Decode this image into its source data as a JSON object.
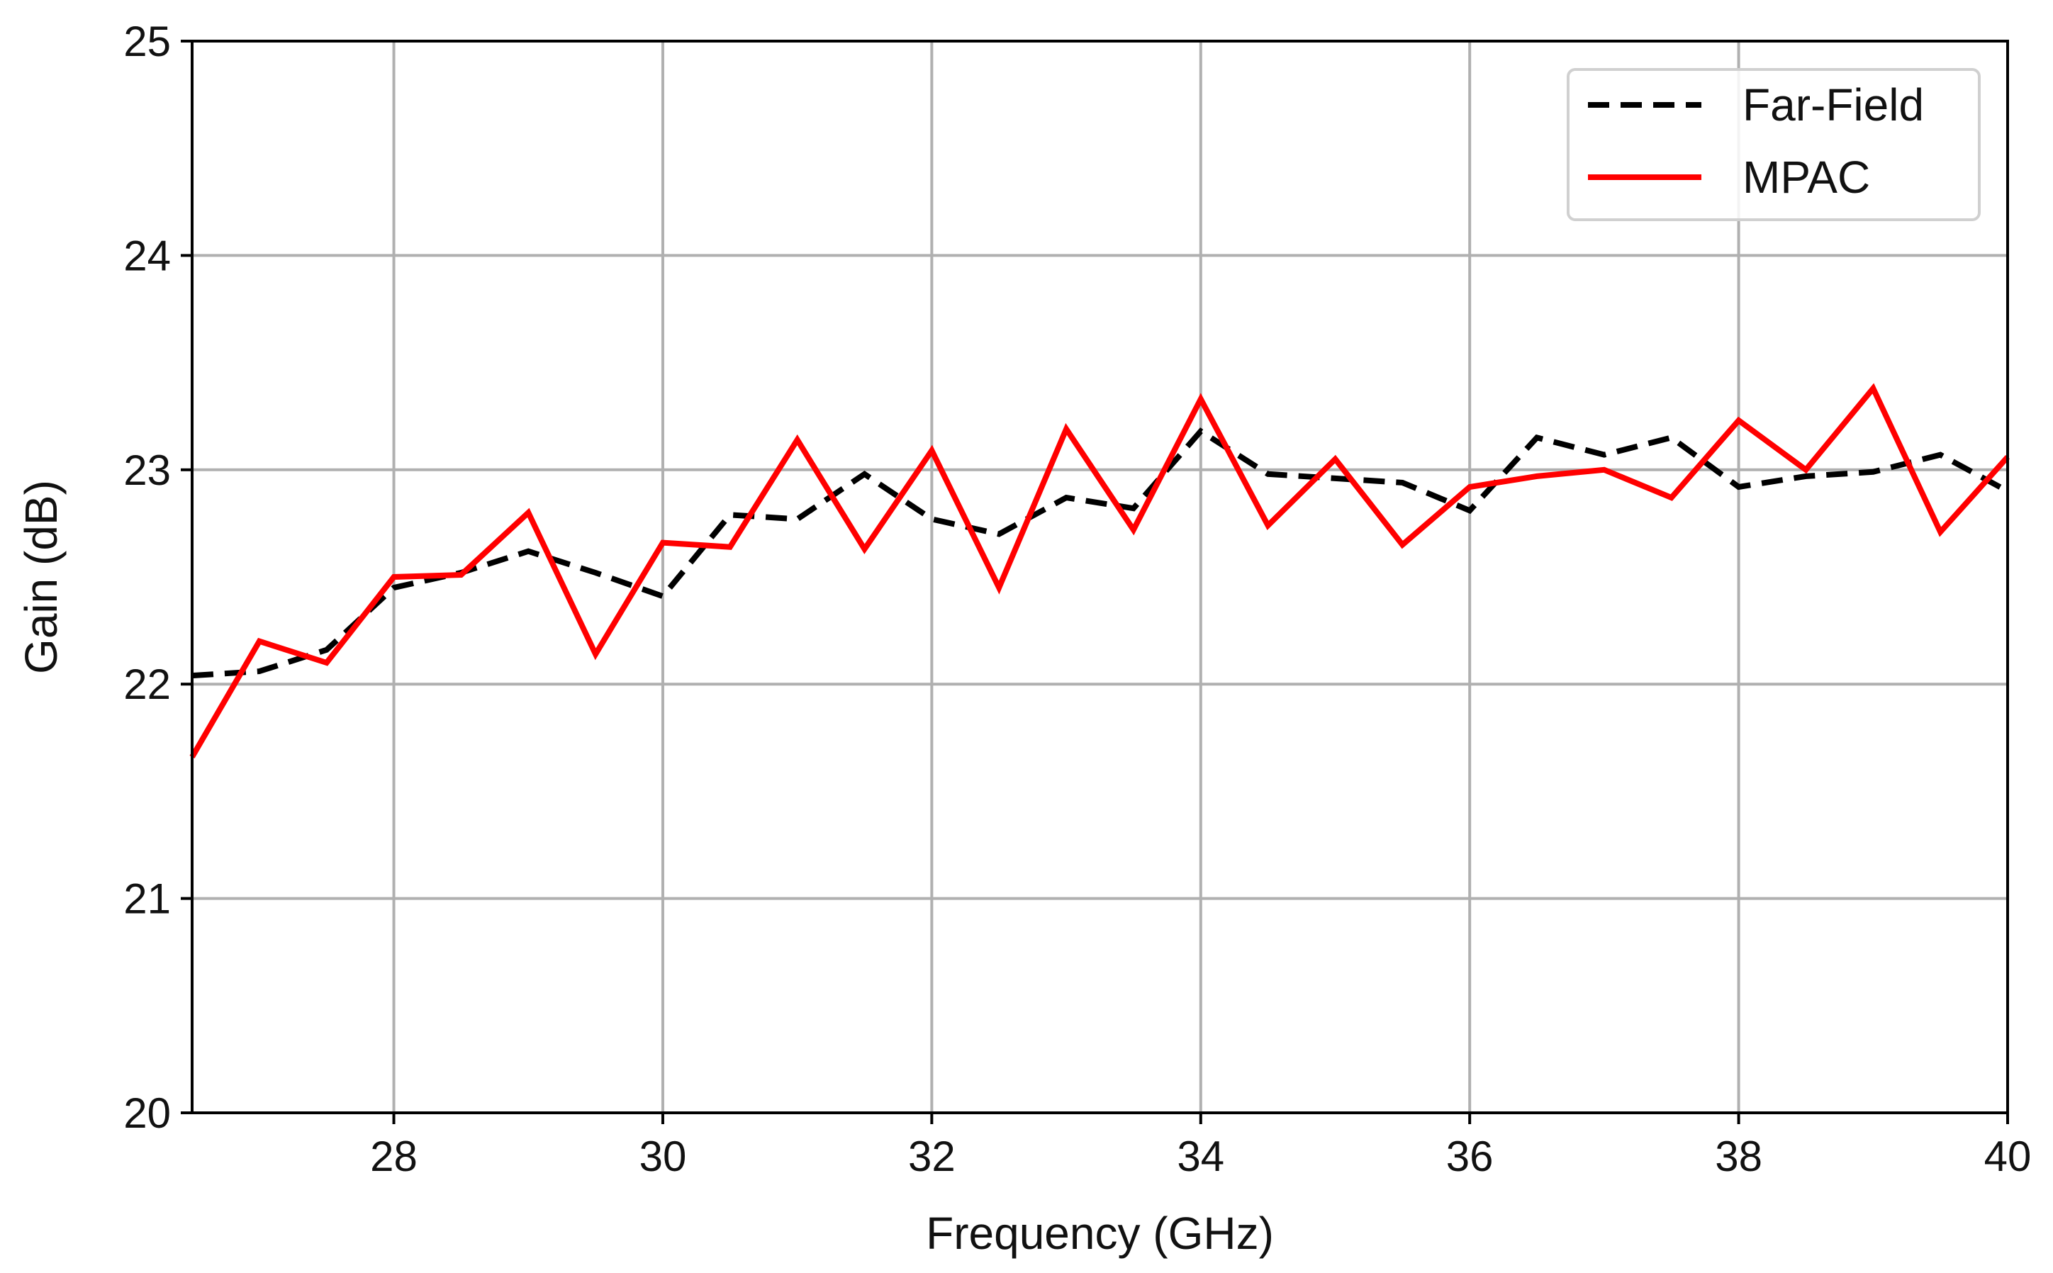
{
  "chart_data": {
    "type": "line",
    "xlabel": "Frequency (GHz)",
    "ylabel": "Gain (dB)",
    "xlim": [
      26.5,
      40
    ],
    "ylim": [
      20,
      25
    ],
    "xticks": [
      28,
      30,
      32,
      34,
      36,
      38,
      40
    ],
    "yticks": [
      20,
      21,
      22,
      23,
      24,
      25
    ],
    "grid": true,
    "legend_position": "top-right",
    "series": [
      {
        "name": "Far-Field",
        "color": "#000000",
        "style": "dashed",
        "x": [
          26.5,
          27,
          27.5,
          28,
          28.5,
          29,
          29.5,
          30,
          30.5,
          31,
          31.5,
          32,
          32.5,
          33,
          33.5,
          34,
          34.5,
          35,
          35.5,
          36,
          36.5,
          37,
          37.5,
          38,
          38.5,
          39,
          39.5,
          40
        ],
        "y": [
          22.04,
          22.06,
          22.16,
          22.45,
          22.52,
          22.62,
          22.52,
          22.41,
          22.79,
          22.77,
          22.98,
          22.77,
          22.7,
          22.87,
          22.82,
          23.18,
          22.98,
          22.96,
          22.94,
          22.81,
          23.15,
          23.07,
          23.15,
          22.92,
          22.97,
          22.99,
          23.07,
          22.9
        ]
      },
      {
        "name": "MPAC",
        "color": "#ff0000",
        "style": "solid",
        "x": [
          26.5,
          27,
          27.5,
          28,
          28.5,
          29,
          29.5,
          30,
          30.5,
          31,
          31.5,
          32,
          32.5,
          33,
          33.5,
          34,
          34.5,
          35,
          35.5,
          36,
          36.5,
          37,
          37.5,
          38,
          38.5,
          39,
          39.5,
          40
        ],
        "y": [
          21.66,
          22.2,
          22.1,
          22.5,
          22.51,
          22.8,
          22.14,
          22.66,
          22.64,
          23.14,
          22.63,
          23.09,
          22.45,
          23.19,
          22.72,
          23.33,
          22.74,
          23.05,
          22.65,
          22.92,
          22.97,
          23.0,
          22.87,
          23.23,
          23.0,
          23.38,
          22.71,
          23.06
        ]
      }
    ]
  }
}
